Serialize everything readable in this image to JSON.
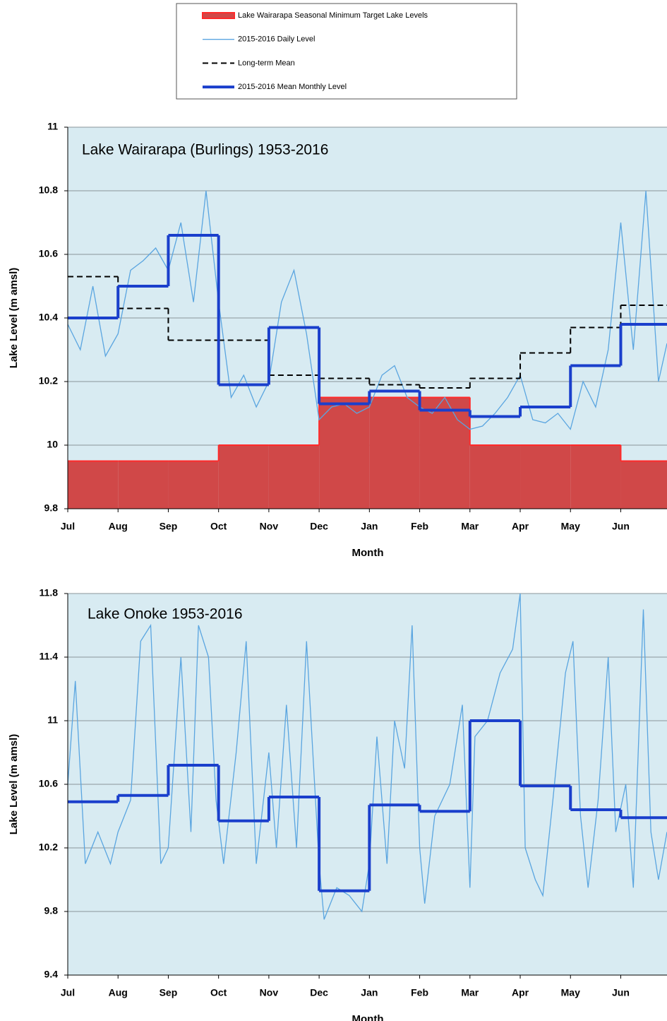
{
  "chart_data": [
    {
      "type": "line",
      "title": "Lake Wairarapa (Burlings) 1953-2016",
      "x_label": "Month",
      "y_label": "Lake Level (m amsl)",
      "xlim": [
        0,
        11.92
      ],
      "ylim": [
        9.8,
        11
      ],
      "xticks": [
        {
          "value": 0,
          "label": "Jul"
        },
        {
          "value": 1,
          "label": "Aug"
        },
        {
          "value": 2,
          "label": "Sep"
        },
        {
          "value": 3,
          "label": "Oct"
        },
        {
          "value": 4,
          "label": "Nov"
        },
        {
          "value": 5,
          "label": "Dec"
        },
        {
          "value": 6,
          "label": "Jan"
        },
        {
          "value": 7,
          "label": "Feb"
        },
        {
          "value": 8,
          "label": "Mar"
        },
        {
          "value": 9,
          "label": "Apr"
        },
        {
          "value": 10,
          "label": "May"
        },
        {
          "value": 11,
          "label": "Jun"
        }
      ],
      "yticks": [
        9.8,
        10,
        10.2,
        10.4,
        10.6,
        10.8,
        11
      ],
      "grid": true,
      "series": [
        {
          "name": "Lake Wairarapa Seasonal Minimum Target Lake Levels",
          "style": "step-area",
          "color": "#d04848",
          "line_color": "#ff2a2a",
          "x": [
            0,
            1,
            2,
            3,
            4,
            5,
            6,
            7,
            8,
            9,
            10,
            11
          ],
          "values": [
            9.95,
            9.95,
            9.95,
            10.0,
            10.0,
            10.15,
            10.15,
            10.15,
            10.0,
            10.0,
            10.0,
            9.95
          ]
        },
        {
          "name": "2015-2016 Daily Level",
          "style": "line",
          "color": "#5aa5e0",
          "x": [
            0,
            0.25,
            0.5,
            0.75,
            1,
            1.25,
            1.5,
            1.75,
            2,
            2.25,
            2.5,
            2.75,
            3,
            3.25,
            3.5,
            3.75,
            4,
            4.25,
            4.5,
            4.75,
            5,
            5.25,
            5.5,
            5.75,
            6,
            6.25,
            6.5,
            6.75,
            7,
            7.25,
            7.5,
            7.75,
            8,
            8.25,
            8.5,
            8.75,
            9,
            9.25,
            9.5,
            9.75,
            10,
            10.25,
            10.5,
            10.75,
            11,
            11.25,
            11.5,
            11.75,
            11.92
          ],
          "values": [
            10.38,
            10.3,
            10.5,
            10.28,
            10.35,
            10.55,
            10.58,
            10.62,
            10.55,
            10.7,
            10.45,
            10.8,
            10.45,
            10.15,
            10.22,
            10.12,
            10.2,
            10.45,
            10.55,
            10.35,
            10.08,
            10.12,
            10.13,
            10.1,
            10.12,
            10.22,
            10.25,
            10.15,
            10.12,
            10.1,
            10.15,
            10.08,
            10.05,
            10.06,
            10.1,
            10.15,
            10.22,
            10.08,
            10.07,
            10.1,
            10.05,
            10.2,
            10.12,
            10.3,
            10.7,
            10.3,
            10.8,
            10.2,
            10.32
          ]
        },
        {
          "name": "Long-term Mean",
          "style": "step",
          "dash": true,
          "color": "#000000",
          "x": [
            0,
            1,
            2,
            3,
            4,
            5,
            6,
            7,
            8,
            9,
            10,
            11
          ],
          "values": [
            10.53,
            10.43,
            10.33,
            10.33,
            10.22,
            10.21,
            10.19,
            10.18,
            10.21,
            10.29,
            10.37,
            10.44
          ]
        },
        {
          "name": "2015-2016 Mean Monthly Level",
          "style": "step",
          "color": "#1a3fcc",
          "x": [
            0,
            1,
            2,
            3,
            4,
            5,
            6,
            7,
            8,
            9,
            10,
            11
          ],
          "values": [
            10.4,
            10.5,
            10.66,
            10.19,
            10.37,
            10.13,
            10.17,
            10.11,
            10.09,
            10.12,
            10.25,
            10.38
          ]
        }
      ]
    },
    {
      "type": "line",
      "title": "Lake Onoke 1953-2016",
      "x_label": "Month",
      "y_label": "Lake Level (m amsl)",
      "xlim": [
        0,
        11.92
      ],
      "ylim": [
        9.4,
        11.8
      ],
      "xticks": [
        {
          "value": 0,
          "label": "Jul"
        },
        {
          "value": 1,
          "label": "Aug"
        },
        {
          "value": 2,
          "label": "Sep"
        },
        {
          "value": 3,
          "label": "Oct"
        },
        {
          "value": 4,
          "label": "Nov"
        },
        {
          "value": 5,
          "label": "Dec"
        },
        {
          "value": 6,
          "label": "Jan"
        },
        {
          "value": 7,
          "label": "Feb"
        },
        {
          "value": 8,
          "label": "Mar"
        },
        {
          "value": 9,
          "label": "Apr"
        },
        {
          "value": 10,
          "label": "May"
        },
        {
          "value": 11,
          "label": "Jun"
        }
      ],
      "yticks": [
        9.4,
        9.8,
        10.2,
        10.6,
        11,
        11.4,
        11.8
      ],
      "grid": true,
      "series": [
        {
          "style": "line",
          "color": "#5aa5e0",
          "x": [
            0,
            0.15,
            0.35,
            0.6,
            0.85,
            1,
            1.25,
            1.45,
            1.65,
            1.85,
            2,
            2.25,
            2.45,
            2.6,
            2.8,
            2.95,
            3.1,
            3.35,
            3.55,
            3.75,
            4,
            4.15,
            4.35,
            4.55,
            4.75,
            5,
            5.1,
            5.35,
            5.6,
            5.85,
            6,
            6.15,
            6.35,
            6.5,
            6.7,
            6.85,
            7,
            7.1,
            7.3,
            7.6,
            7.85,
            8,
            8.1,
            8.35,
            8.6,
            8.85,
            9,
            9.1,
            9.3,
            9.45,
            9.65,
            9.9,
            10.05,
            10.2,
            10.35,
            10.55,
            10.75,
            10.9,
            11.1,
            11.25,
            11.45,
            11.6,
            11.75,
            11.92
          ],
          "values": [
            10.6,
            11.25,
            10.1,
            10.3,
            10.1,
            10.3,
            10.5,
            11.5,
            11.6,
            10.1,
            10.2,
            11.4,
            10.3,
            11.6,
            11.4,
            10.5,
            10.1,
            10.8,
            11.5,
            10.1,
            10.8,
            10.2,
            11.1,
            10.2,
            11.5,
            10.1,
            9.75,
            9.95,
            9.9,
            9.8,
            10.1,
            10.9,
            10.1,
            11.0,
            10.7,
            11.6,
            10.2,
            9.85,
            10.4,
            10.6,
            11.1,
            9.95,
            10.9,
            11.0,
            11.3,
            11.45,
            11.8,
            10.2,
            10.0,
            9.9,
            10.5,
            11.3,
            11.5,
            10.4,
            9.95,
            10.5,
            11.4,
            10.3,
            10.6,
            9.95,
            11.7,
            10.3,
            10.0,
            10.3
          ]
        },
        {
          "style": "step",
          "color": "#1a3fcc",
          "x": [
            0,
            1,
            2,
            3,
            4,
            5,
            6,
            7,
            8,
            9,
            10,
            11
          ],
          "values": [
            10.49,
            10.53,
            10.72,
            10.37,
            10.52,
            9.93,
            10.47,
            10.43,
            11.0,
            10.59,
            10.44,
            10.39
          ]
        }
      ]
    }
  ]
}
